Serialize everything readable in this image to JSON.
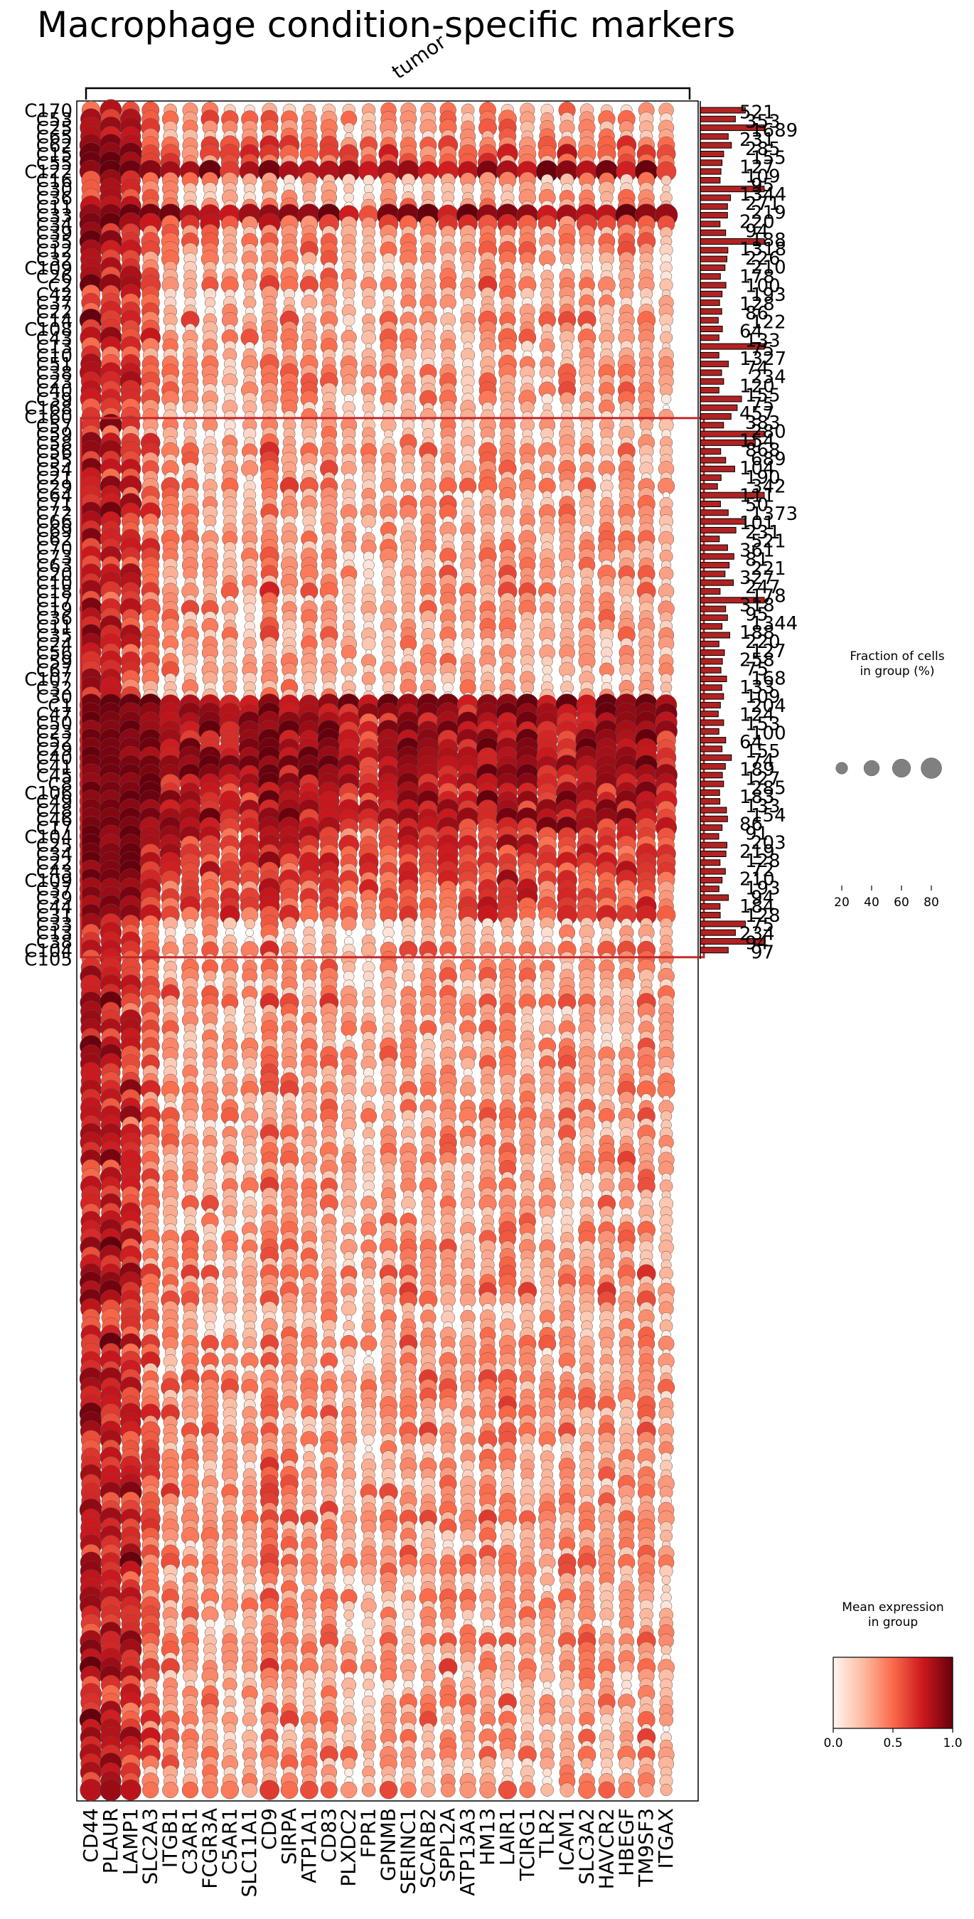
{
  "chart_data": {
    "type": "dotplot",
    "title": "Macrophage condition-specific markers",
    "group_bracket_label": "tumor",
    "genes": [
      "CD44",
      "PLAUR",
      "LAMP1",
      "SLC2A3",
      "ITGB1",
      "C3AR1",
      "FCGR3A",
      "C5AR1",
      "SLC11A1",
      "CD9",
      "SIRPA",
      "ATP1A1",
      "CD83",
      "PLXDC2",
      "FPR1",
      "GPNMB",
      "SERINC1",
      "SCARB2",
      "SPPL2A",
      "ATP13A3",
      "HM13",
      "LAIR1",
      "TCIRG1",
      "TLR2",
      "ICAM1",
      "SLC3A2",
      "HAVCR2",
      "HBEGF",
      "TM9SF3",
      "ITGAX"
    ],
    "visible_row_labels": [
      "C170",
      "C53",
      "C25",
      "C65",
      "C62",
      "C15",
      "C55",
      "C122",
      "C16",
      "C30",
      "C36",
      "C11",
      "C33",
      "C34",
      "C39",
      "C35",
      "C12",
      "C32",
      "C109",
      "C26",
      "C2",
      "C42",
      "C37",
      "C22",
      "C14",
      "C108",
      "C43",
      "C13",
      "C10",
      "C51",
      "C38",
      "C23",
      "C40",
      "C39",
      "C168",
      "C160",
      "C57",
      "C59",
      "C58",
      "C56",
      "C55",
      "C54",
      "C21",
      "C29",
      "C64",
      "C71",
      "C72",
      "C66",
      "C69",
      "C62",
      "C70",
      "C73",
      "C63",
      "C20",
      "C10",
      "C18",
      "C17",
      "C19",
      "C36",
      "C11",
      "C35",
      "C24",
      "C56",
      "C59",
      "C67",
      "C107",
      "C32",
      "C30",
      "C1",
      "C47",
      "C50",
      "C23",
      "C52",
      "C29",
      "C40",
      "C41",
      "C45",
      "C8",
      "C106",
      "C49",
      "C48",
      "C46",
      "C17",
      "C104",
      "C25",
      "C34",
      "C22",
      "C43",
      "C109",
      "C37",
      "C39",
      "C44",
      "C31",
      "C33",
      "C13",
      "C38",
      "C104",
      "C105"
    ],
    "top_bar_counts": [
      "521",
      "353",
      "1689",
      "231",
      "285",
      "155",
      "127",
      "109",
      "95",
      "1344",
      "271",
      "219",
      "220",
      "94",
      "188",
      "1318",
      "226",
      "210",
      "178",
      "100",
      "193",
      "128",
      "86",
      "122",
      "64",
      "133",
      "75",
      "1327",
      "74",
      "234",
      "120",
      "155",
      "75"
    ],
    "lower_bar_counts": [
      "457",
      "383",
      "280",
      "154",
      "868",
      "689",
      "104",
      "190",
      "342",
      "111",
      "50",
      "1373",
      "101",
      "231",
      "521",
      "361",
      "81",
      "221",
      "327",
      "247",
      "178",
      "318",
      "95",
      "1344",
      "188",
      "220",
      "127",
      "258",
      "75",
      "168",
      "133",
      "109",
      "204",
      "124",
      "153",
      "100",
      "64",
      "155",
      "74",
      "189",
      "127",
      "285",
      "183",
      "133",
      "154",
      "86",
      "91",
      "203",
      "219",
      "128",
      "72",
      "210",
      "193",
      "94",
      "184",
      "128",
      "75",
      "234",
      "94",
      "97"
    ],
    "n_rows": 193,
    "highlight_rows": [
      36,
      96
    ],
    "size_legend": {
      "title": "Fraction of cells\nin group (%)",
      "ticks": [
        20,
        40,
        60,
        80
      ]
    },
    "color_legend": {
      "title": "Mean expression\nin group",
      "ticks": [
        "0.0",
        "0.5",
        "1.0"
      ],
      "range": [
        0,
        1
      ]
    },
    "colormap": [
      "#fff5f0",
      "#fcbba1",
      "#fb6a4a",
      "#cb181d",
      "#67000d"
    ],
    "bar_color": "#b22222",
    "highlight_color": "#c62828"
  }
}
